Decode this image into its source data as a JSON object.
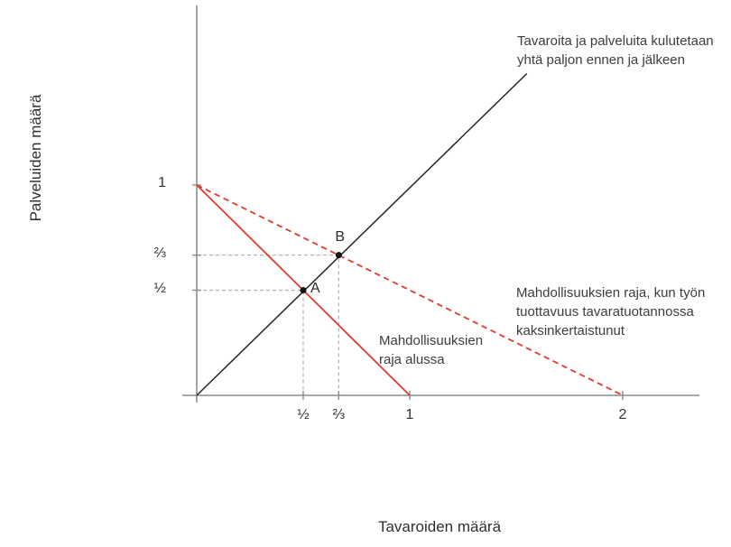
{
  "figure": {
    "y_axis_title": "Palveluiden määrä",
    "x_axis_title": "Tavaroiden määrä"
  },
  "colors": {
    "red": "#e03a2e",
    "black_line": "#262626",
    "axis": "#8c8c8c",
    "grid": "#b4b4b4",
    "point": "#111111",
    "text": "#3d3d3d"
  },
  "annotations": {
    "equal_consumption": "Tavaroita ja palveluita kulutetaan yhtä paljon ennen ja jälkeen",
    "frontier_initial": "Mahdollisuuksien raja alussa",
    "frontier_doubled": "Mahdollisuuksien raja, kun työn tuottavuus tavaratuotannossa kaksinkertaistunut"
  },
  "chart_data": {
    "type": "line",
    "title": "",
    "xlabel": "Tavaroiden määrä",
    "ylabel": "Palveluiden määrä",
    "xlim": [
      0,
      2.36
    ],
    "ylim": [
      0,
      1.88
    ],
    "grid": "off",
    "legend": "none",
    "x_ticks": [
      {
        "value": 0.5,
        "label": "½"
      },
      {
        "value": 0.6667,
        "label": "⅔"
      },
      {
        "value": 1,
        "label": "1"
      },
      {
        "value": 2,
        "label": "2"
      }
    ],
    "y_ticks": [
      {
        "value": 0.5,
        "label": "½"
      },
      {
        "value": 0.6667,
        "label": "⅔"
      },
      {
        "value": 1,
        "label": "1"
      }
    ],
    "series": [
      {
        "name": "Tavaroita ja palveluita kulutetaan yhtä paljon ennen ja jälkeen",
        "style": "solid",
        "color": "#262626",
        "points": [
          [
            0,
            0
          ],
          [
            1.55,
            1.53
          ]
        ]
      },
      {
        "name": "Mahdollisuuksien raja alussa",
        "style": "solid",
        "color": "#e03a2e",
        "points": [
          [
            0,
            1
          ],
          [
            1,
            0
          ]
        ]
      },
      {
        "name": "Mahdollisuuksien raja, kun työn tuottavuus tavaratuotannossa kaksinkertaistunut",
        "style": "dashed",
        "color": "#e03a2e",
        "points": [
          [
            0,
            1
          ],
          [
            2,
            0
          ]
        ]
      }
    ],
    "marked_points": [
      {
        "label": "A",
        "x": 0.5,
        "y": 0.5
      },
      {
        "label": "B",
        "x": 0.6667,
        "y": 0.6667
      }
    ]
  }
}
